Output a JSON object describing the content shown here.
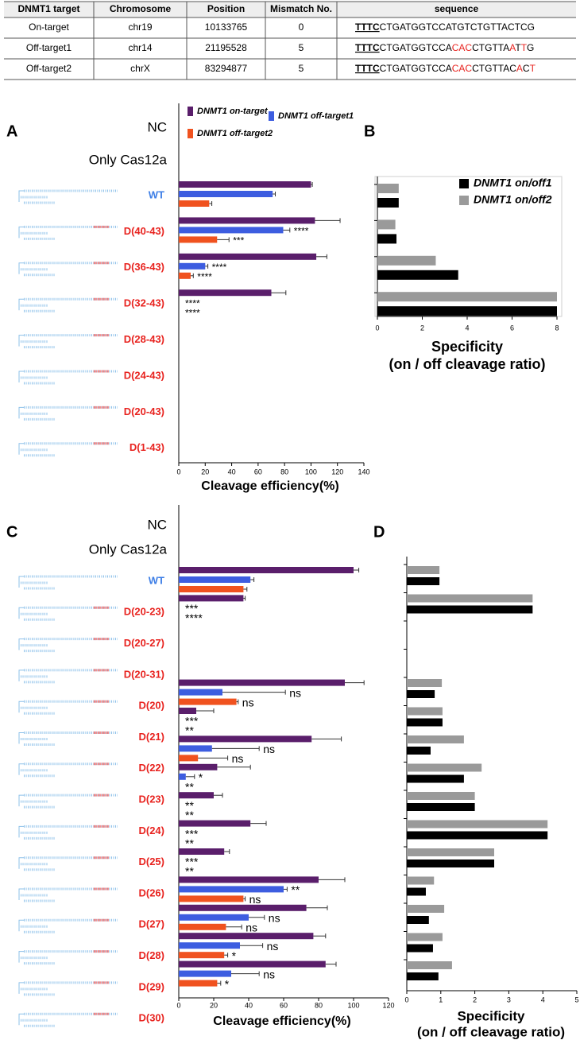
{
  "table": {
    "header": [
      "DNMT1 target",
      "Chromosome",
      "Position",
      "Mismatch No.",
      "sequence"
    ],
    "rows": [
      [
        "On-target",
        "chr19",
        10133765,
        0,
        [
          {
            "text": "TTTC",
            "color": "#000000"
          },
          {
            "text": "CTGATGGTCCATGTCTGTTACTCG",
            "color": "#000000"
          }
        ]
      ],
      [
        "Off-target1",
        "chr14",
        21195528,
        5,
        [
          {
            "text": "TTTC",
            "color": "#000000"
          },
          {
            "text": "CTGATGGTCCA",
            "color": "#000000"
          },
          {
            "text": "CAC",
            "color": "#e8231f"
          },
          {
            "text": "CTGTTA",
            "color": "#000000"
          },
          {
            "text": "A",
            "color": "#e8231f"
          },
          {
            "text": "T",
            "color": "#000000"
          },
          {
            "text": "T",
            "color": "#e8231f"
          },
          {
            "text": "G",
            "color": "#000000"
          }
        ]
      ],
      [
        "Off-target2",
        "chrX",
        83294877,
        5,
        [
          {
            "text": "TTTC",
            "color": "#000000"
          },
          {
            "text": "CTGATGGTCCA",
            "color": "#000000"
          },
          {
            "text": "CAC",
            "color": "#e8231f"
          },
          {
            "text": "CTGTTAC",
            "color": "#000000"
          },
          {
            "text": "A",
            "color": "#e8231f"
          },
          {
            "text": "C",
            "color": "#000000"
          },
          {
            "text": "T",
            "color": "#e8231f"
          }
        ]
      ]
    ]
  },
  "chart_data": [
    {
      "type": "bar",
      "orientation": "horizontal",
      "panel": "A",
      "categories": [
        "NC",
        "Only Cas12a",
        "WT",
        "D(40-43)",
        "D(36-43)",
        "D(32-43)",
        "D(28-43)",
        "D(24-43)",
        "D(20-43)",
        "D(1-43)"
      ],
      "category_colors": [
        "#000000",
        "#000000",
        "#3d7ee6",
        "#e8231f",
        "#e8231f",
        "#e8231f",
        "#e8231f",
        "#e8231f",
        "#e8231f",
        "#e8231f"
      ],
      "series": [
        {
          "name": "DNMT1 on-target",
          "color": "#5a1e6b",
          "values": [
            null,
            null,
            100,
            103,
            104,
            70,
            null,
            null,
            null,
            null
          ],
          "errors": [
            null,
            null,
            1,
            19,
            8,
            11,
            null,
            null,
            null,
            null
          ]
        },
        {
          "name": "DNMT1 off-target1",
          "color": "#3d5de0",
          "values": [
            null,
            null,
            71,
            79,
            20,
            null,
            null,
            null,
            null,
            null
          ],
          "errors": [
            null,
            null,
            2,
            5,
            2,
            null,
            null,
            null,
            null,
            null
          ],
          "annotations": [
            null,
            null,
            null,
            "****",
            "****",
            "****",
            null,
            null,
            null,
            null
          ]
        },
        {
          "name": "DNMT1 off-target2",
          "color": "#f0521f",
          "values": [
            null,
            null,
            23,
            29,
            9,
            null,
            null,
            null,
            null,
            null
          ],
          "errors": [
            null,
            null,
            2,
            9,
            2,
            null,
            null,
            null,
            null,
            null
          ],
          "annotations": [
            null,
            null,
            null,
            "***",
            "****",
            "****",
            null,
            null,
            null,
            null
          ]
        }
      ],
      "xlim": [
        0,
        140
      ],
      "xticks": [
        0,
        20,
        40,
        60,
        80,
        100,
        120,
        140
      ],
      "xlabel": [
        "Cleavage efficiency(%)"
      ],
      "legend": "top"
    },
    {
      "type": "bar",
      "orientation": "horizontal",
      "panel": "B",
      "categories": [
        null,
        null,
        null,
        null
      ],
      "series": [
        {
          "name": "DNMT1 on/off1",
          "color": "#000000",
          "values": [
            0.95,
            0.85,
            3.6,
            8
          ]
        },
        {
          "name": "DNMT1 on/off2",
          "color": "#9a9a9a",
          "values": [
            0.95,
            0.8,
            2.6,
            8
          ]
        }
      ],
      "xlim": [
        0,
        8
      ],
      "xticks": [
        0,
        2,
        4,
        6,
        8
      ],
      "xlabel": [
        "Specificity",
        "(on / off cleavage ratio)"
      ],
      "legend": "upper right"
    },
    {
      "type": "bar",
      "orientation": "horizontal",
      "panel": "C",
      "categories": [
        "NC",
        "Only Cas12a",
        "WT",
        "D(20-23)",
        "D(20-27)",
        "D(20-31)",
        "D(20)",
        "D(21)",
        "D(22)",
        "D(23)",
        "D(24)",
        "D(25)",
        "D(26)",
        "D(27)",
        "D(28)",
        "D(29)",
        "D(30)"
      ],
      "category_colors": [
        "#000000",
        "#000000",
        "#3d7ee6",
        "#e8231f",
        "#e8231f",
        "#e8231f",
        "#e8231f",
        "#e8231f",
        "#e8231f",
        "#e8231f",
        "#e8231f",
        "#e8231f",
        "#e8231f",
        "#e8231f",
        "#e8231f",
        "#e8231f",
        "#e8231f"
      ],
      "series": [
        {
          "color": "#5a1e6b",
          "values": [
            null,
            null,
            100,
            37,
            null,
            null,
            95,
            10,
            76,
            22,
            20,
            41,
            26,
            80,
            73,
            77,
            84
          ],
          "errors": [
            null,
            null,
            3,
            1,
            null,
            null,
            11,
            10,
            17,
            19,
            5,
            9,
            3,
            15,
            12,
            7,
            6
          ]
        },
        {
          "color": "#3d5de0",
          "values": [
            null,
            null,
            41,
            null,
            null,
            null,
            25,
            null,
            19,
            4,
            null,
            null,
            null,
            60,
            40,
            35,
            30
          ],
          "errors": [
            null,
            null,
            2,
            null,
            null,
            null,
            36,
            null,
            27,
            5,
            null,
            null,
            null,
            2,
            9,
            13,
            16
          ],
          "annotations": [
            null,
            null,
            null,
            "***",
            null,
            null,
            "ns",
            "***",
            "ns",
            "*",
            "**",
            "***",
            "***",
            "**",
            "ns",
            "ns",
            "ns"
          ]
        },
        {
          "color": "#f0521f",
          "values": [
            null,
            null,
            37,
            null,
            null,
            null,
            33,
            null,
            11,
            null,
            null,
            null,
            null,
            37,
            27,
            26,
            22
          ],
          "errors": [
            null,
            null,
            2,
            null,
            null,
            null,
            1,
            null,
            17,
            null,
            null,
            null,
            null,
            1,
            9,
            2,
            2
          ],
          "annotations": [
            null,
            null,
            null,
            "****",
            null,
            null,
            "ns",
            "**",
            "ns",
            "**",
            "**",
            "**",
            "**",
            "ns",
            "ns",
            "*",
            "*"
          ]
        }
      ],
      "xlim": [
        0,
        120
      ],
      "xticks": [
        0,
        20,
        40,
        60,
        80,
        100,
        120
      ],
      "xlabel": [
        "Cleavage efficiency(%)"
      ]
    },
    {
      "type": "bar",
      "orientation": "horizontal",
      "panel": "D",
      "categories": [
        null,
        null,
        null,
        null,
        null,
        null,
        null,
        null,
        null,
        null,
        null,
        null,
        null,
        null,
        null
      ],
      "series": [
        {
          "color": "#000000",
          "values": [
            0.96,
            3.7,
            null,
            null,
            0.82,
            1.05,
            0.7,
            1.68,
            2.0,
            4.14,
            2.57,
            0.56,
            0.65,
            0.77,
            0.93
          ]
        },
        {
          "color": "#9a9a9a",
          "values": [
            0.96,
            3.7,
            null,
            null,
            1.03,
            1.05,
            1.68,
            2.2,
            2.0,
            4.14,
            2.57,
            0.8,
            1.1,
            1.05,
            1.33
          ]
        }
      ],
      "xlim": [
        0,
        5
      ],
      "xticks": [
        0,
        1,
        2,
        3,
        4,
        5
      ],
      "xlabel": [
        "Specificity",
        "(on / off cleavage ratio)"
      ]
    }
  ]
}
